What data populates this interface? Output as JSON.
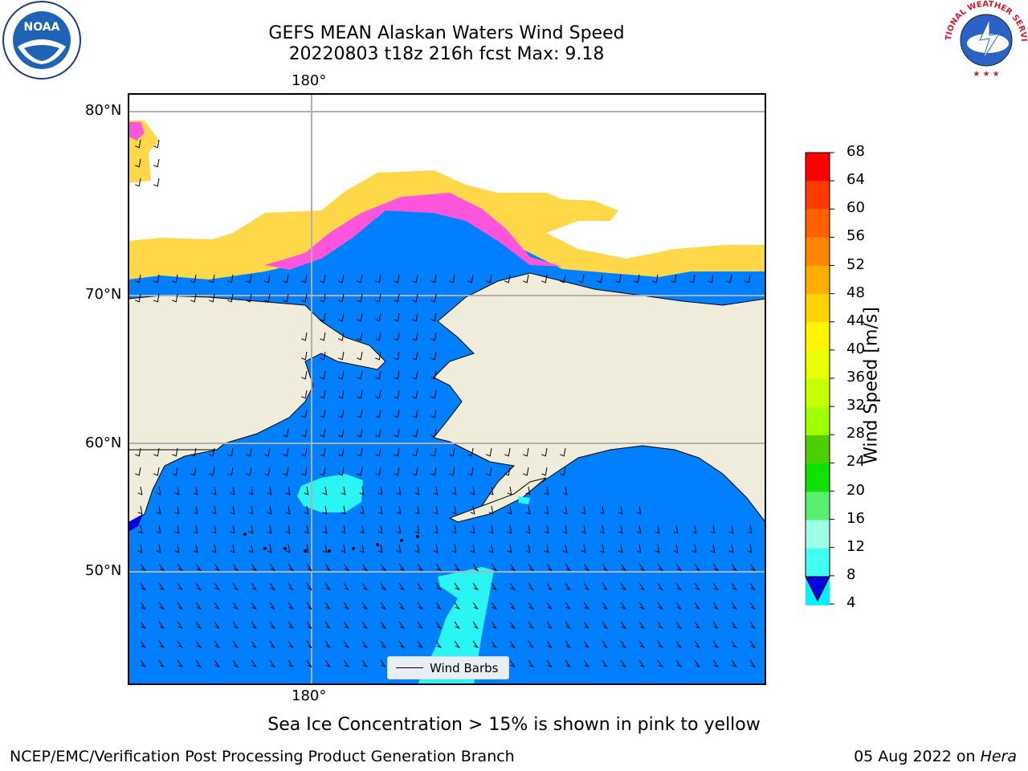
{
  "title": {
    "line1": "GEFS MEAN Alaskan Waters Wind Speed",
    "line2": "20220803 t18z 216h fcst   Max: 9.18"
  },
  "axes": {
    "lon_top": "180°",
    "lon_bottom": "180°",
    "lat_labels": [
      "80°N",
      "70°N",
      "60°N",
      "50°N"
    ]
  },
  "colorbar": {
    "label": "Wind Speed [m/s]",
    "ticks": [
      "68",
      "64",
      "60",
      "56",
      "52",
      "48",
      "44",
      "40",
      "36",
      "32",
      "28",
      "24",
      "20",
      "16",
      "12",
      "8",
      "4"
    ],
    "colors": [
      "#ff0000",
      "#ff3a00",
      "#ff6000",
      "#ff8400",
      "#ffad00",
      "#ffd200",
      "#fff500",
      "#eaff00",
      "#c8ff00",
      "#a0ff00",
      "#4ccf00",
      "#12e000",
      "#58f070",
      "#9effe8",
      "#40fff0",
      "#00f0ff",
      "#0080ff"
    ],
    "under_color": "#0000e0"
  },
  "legend": {
    "label": "Wind Barbs"
  },
  "colors": {
    "ocean": "#0080ff",
    "land": "#efecdc",
    "ice_pink": "#ff55dd",
    "ice_yellow": "#ffd84a",
    "cyan": "#2af5f5"
  },
  "note": "Sea Ice Concentration > 15% is shown in pink to yellow",
  "footer": {
    "left": "NCEP/EMC/Verification Post Processing Product Generation Branch",
    "right_prefix": "05 Aug 2022 on ",
    "right_host": "Hera"
  },
  "logos": {
    "noaa": "NOAA",
    "nws": "NATIONAL WEATHER SERVICE"
  }
}
